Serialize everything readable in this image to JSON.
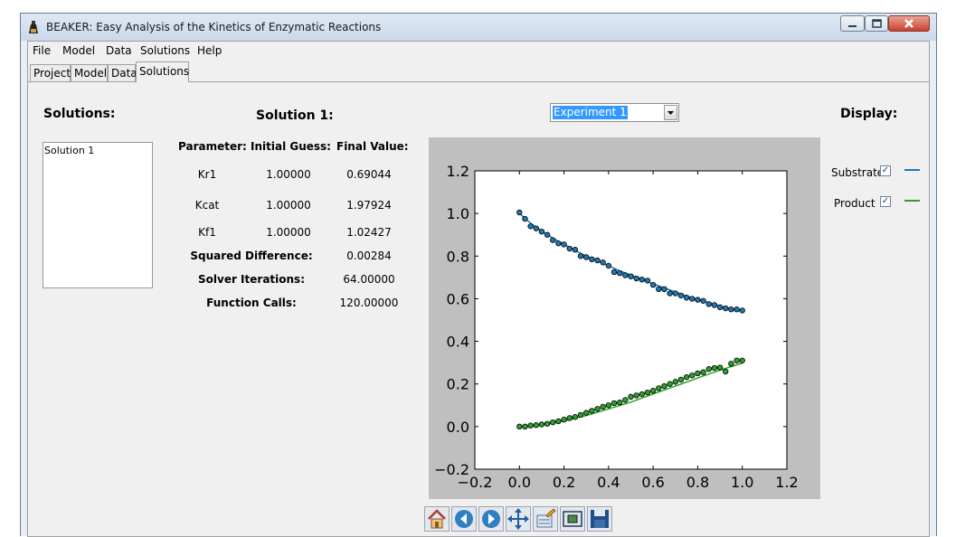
{
  "window": {
    "title": "BEAKER: Easy Analysis of the Kinetics of Enzymatic Reactions"
  },
  "menu": [
    "File",
    "Model",
    "Data",
    "Solutions",
    "Help"
  ],
  "tabs": [
    {
      "label": "Project",
      "active": false
    },
    {
      "label": "Model",
      "active": false
    },
    {
      "label": "Data",
      "active": false
    },
    {
      "label": "Solutions",
      "active": true
    }
  ],
  "solutions_panel": {
    "title": "Solutions:",
    "items": [
      "Solution 1"
    ]
  },
  "solution_panel": {
    "title": "Solution 1:",
    "headers": {
      "parameter": "Parameter:",
      "initial": "Initial Guess:",
      "final": "Final Value:"
    },
    "params": [
      {
        "name": "Kr1",
        "initial": "1.00000",
        "final": "0.69044"
      },
      {
        "name": "Kcat",
        "initial": "1.00000",
        "final": "1.97924"
      },
      {
        "name": "Kf1",
        "initial": "1.00000",
        "final": "1.02427"
      }
    ],
    "stats": [
      {
        "label": "Squared Difference:",
        "value": "0.00284"
      },
      {
        "label": "Solver Iterations:",
        "value": "64.00000"
      },
      {
        "label": "Function Calls:",
        "value": "120.00000"
      }
    ]
  },
  "experiment_select": {
    "value": "Experiment 1"
  },
  "display_panel": {
    "title": "Display:",
    "items": [
      {
        "label": "Substrate",
        "checked": true,
        "check_glyph": "✓",
        "color": "#1f77b4"
      },
      {
        "label": "Product",
        "checked": true,
        "check_glyph": "✓",
        "color": "#2ca02c"
      }
    ]
  },
  "toolbar": [
    "home-icon",
    "back-icon",
    "forward-icon",
    "pan-icon",
    "configure-subplots-icon",
    "zoom-to-rect-icon",
    "save-icon"
  ],
  "chart_data": {
    "type": "scatter",
    "xlim": [
      -0.2,
      1.2
    ],
    "ylim": [
      -0.2,
      1.2
    ],
    "xticks": [
      "−0.2",
      "0.0",
      "0.2",
      "0.4",
      "0.6",
      "0.8",
      "1.0",
      "1.2"
    ],
    "yticks": [
      "−0.2",
      "0.0",
      "0.2",
      "0.4",
      "0.6",
      "0.8",
      "1.0",
      "1.2"
    ],
    "grid": false,
    "series": [
      {
        "line_color": "#1f77b4",
        "marker_color": "#1f77b4",
        "fit": [
          [
            0.0,
            1.0
          ],
          [
            0.05,
            0.955
          ],
          [
            0.1,
            0.918
          ],
          [
            0.15,
            0.884
          ],
          [
            0.2,
            0.855
          ],
          [
            0.25,
            0.826
          ],
          [
            0.3,
            0.8
          ],
          [
            0.35,
            0.778
          ],
          [
            0.4,
            0.754
          ],
          [
            0.45,
            0.731
          ],
          [
            0.5,
            0.71
          ],
          [
            0.55,
            0.69
          ],
          [
            0.6,
            0.67
          ],
          [
            0.65,
            0.651
          ],
          [
            0.7,
            0.632
          ],
          [
            0.75,
            0.613
          ],
          [
            0.8,
            0.596
          ],
          [
            0.85,
            0.58
          ],
          [
            0.9,
            0.565
          ],
          [
            0.95,
            0.553
          ],
          [
            1.0,
            0.54
          ]
        ],
        "points": [
          [
            0.0,
            1.005
          ],
          [
            0.025,
            0.975
          ],
          [
            0.05,
            0.94
          ],
          [
            0.075,
            0.93
          ],
          [
            0.1,
            0.915
          ],
          [
            0.125,
            0.9
          ],
          [
            0.15,
            0.875
          ],
          [
            0.175,
            0.86
          ],
          [
            0.2,
            0.855
          ],
          [
            0.225,
            0.835
          ],
          [
            0.25,
            0.83
          ],
          [
            0.275,
            0.8
          ],
          [
            0.3,
            0.795
          ],
          [
            0.325,
            0.785
          ],
          [
            0.35,
            0.78
          ],
          [
            0.375,
            0.77
          ],
          [
            0.4,
            0.755
          ],
          [
            0.425,
            0.725
          ],
          [
            0.45,
            0.72
          ],
          [
            0.475,
            0.71
          ],
          [
            0.5,
            0.705
          ],
          [
            0.525,
            0.695
          ],
          [
            0.55,
            0.69
          ],
          [
            0.575,
            0.685
          ],
          [
            0.6,
            0.665
          ],
          [
            0.625,
            0.645
          ],
          [
            0.65,
            0.645
          ],
          [
            0.675,
            0.625
          ],
          [
            0.7,
            0.625
          ],
          [
            0.725,
            0.615
          ],
          [
            0.75,
            0.605
          ],
          [
            0.775,
            0.6
          ],
          [
            0.8,
            0.595
          ],
          [
            0.825,
            0.59
          ],
          [
            0.85,
            0.575
          ],
          [
            0.875,
            0.57
          ],
          [
            0.9,
            0.56
          ],
          [
            0.925,
            0.555
          ],
          [
            0.95,
            0.55
          ],
          [
            0.975,
            0.55
          ],
          [
            1.0,
            0.545
          ]
        ]
      },
      {
        "line_color": "#2ca02c",
        "marker_color": "#2ca02c",
        "fit": [
          [
            0.0,
            0.0
          ],
          [
            0.1,
            0.008
          ],
          [
            0.2,
            0.026
          ],
          [
            0.3,
            0.052
          ],
          [
            0.4,
            0.083
          ],
          [
            0.5,
            0.115
          ],
          [
            0.6,
            0.153
          ],
          [
            0.7,
            0.19
          ],
          [
            0.8,
            0.228
          ],
          [
            0.9,
            0.265
          ],
          [
            1.0,
            0.298
          ]
        ],
        "points": [
          [
            0.0,
            0.0
          ],
          [
            0.025,
            0.0
          ],
          [
            0.05,
            0.005
          ],
          [
            0.075,
            0.007
          ],
          [
            0.1,
            0.01
          ],
          [
            0.125,
            0.013
          ],
          [
            0.15,
            0.02
          ],
          [
            0.175,
            0.025
          ],
          [
            0.2,
            0.033
          ],
          [
            0.225,
            0.04
          ],
          [
            0.25,
            0.045
          ],
          [
            0.275,
            0.055
          ],
          [
            0.3,
            0.065
          ],
          [
            0.325,
            0.074
          ],
          [
            0.35,
            0.083
          ],
          [
            0.375,
            0.093
          ],
          [
            0.4,
            0.1
          ],
          [
            0.425,
            0.11
          ],
          [
            0.45,
            0.113
          ],
          [
            0.475,
            0.125
          ],
          [
            0.5,
            0.14
          ],
          [
            0.525,
            0.146
          ],
          [
            0.55,
            0.152
          ],
          [
            0.575,
            0.16
          ],
          [
            0.6,
            0.168
          ],
          [
            0.625,
            0.18
          ],
          [
            0.65,
            0.19
          ],
          [
            0.675,
            0.2
          ],
          [
            0.7,
            0.21
          ],
          [
            0.725,
            0.22
          ],
          [
            0.75,
            0.232
          ],
          [
            0.775,
            0.24
          ],
          [
            0.8,
            0.25
          ],
          [
            0.825,
            0.255
          ],
          [
            0.85,
            0.27
          ],
          [
            0.875,
            0.275
          ],
          [
            0.9,
            0.277
          ],
          [
            0.925,
            0.258
          ],
          [
            0.95,
            0.295
          ],
          [
            0.975,
            0.31
          ],
          [
            1.0,
            0.31
          ]
        ]
      }
    ]
  }
}
